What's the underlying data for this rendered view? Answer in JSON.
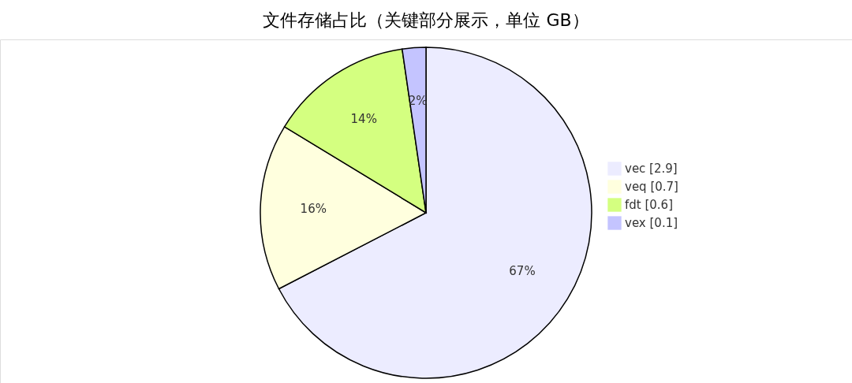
{
  "chart_data": {
    "type": "pie",
    "title": "文件存储占比（关键部分展示，单位 GB）",
    "categories": [
      "vec [2.9]",
      "veq [0.7]",
      "fdt [0.6]",
      "vex [0.1]"
    ],
    "values": [
      67.4,
      16.3,
      14.0,
      2.3
    ],
    "colors": [
      "#ececff",
      "#ffffde",
      "#d4ff80",
      "#c4c4ff"
    ],
    "value_labels": [
      "67%",
      "16%",
      "14%",
      "2%"
    ],
    "legend": "right"
  }
}
